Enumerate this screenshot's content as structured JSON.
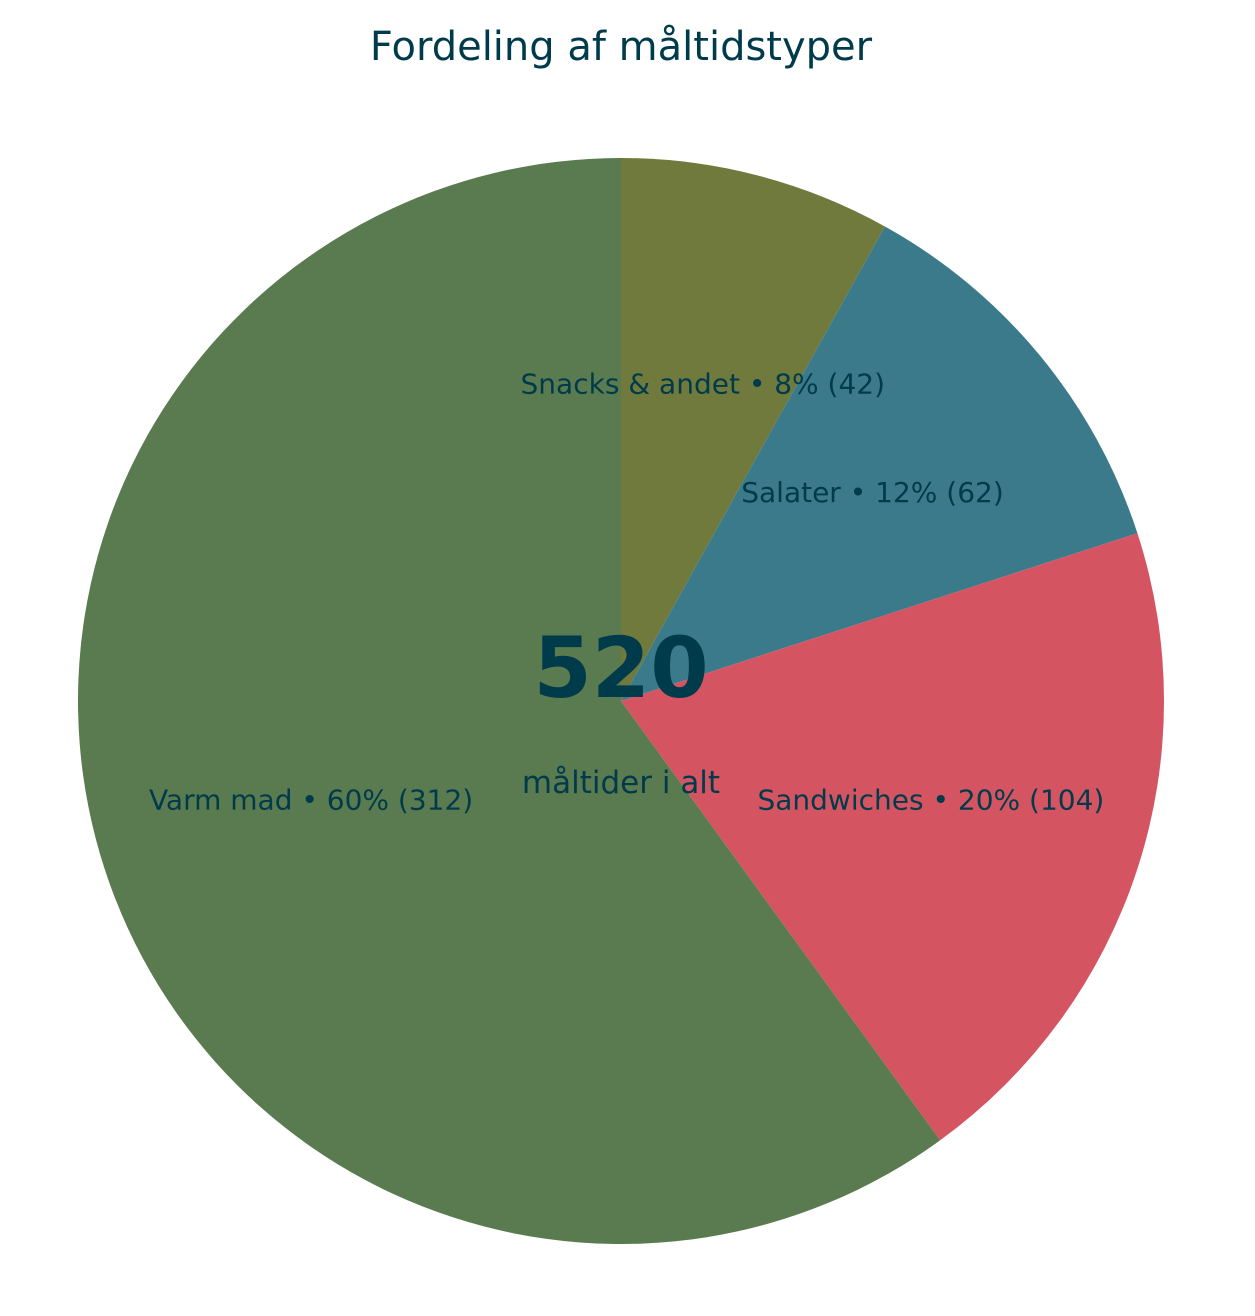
{
  "chart_data": {
    "type": "pie",
    "title": "Fordeling af måltidstyper",
    "total": "520",
    "total_caption": "måltider i alt",
    "start_angle_deg": 90,
    "direction": "clockwise",
    "slices": [
      {
        "name": "Snacks & andet",
        "value": 42,
        "percent": 8,
        "label": "Snacks & andet • 8% (42)",
        "color": "#6f7a3c"
      },
      {
        "name": "Salater",
        "value": 62,
        "percent": 12,
        "label": "Salater • 12% (62)",
        "color": "#3b7a8a"
      },
      {
        "name": "Sandwiches",
        "value": 104,
        "percent": 20,
        "label": "Sandwiches • 20% (104)",
        "color": "#d45461"
      },
      {
        "name": "Varm mad",
        "value": 312,
        "percent": 60,
        "label": "Varm mad • 60% (312)",
        "color": "#5a7a4f"
      }
    ],
    "text_color": "#003b4c"
  }
}
